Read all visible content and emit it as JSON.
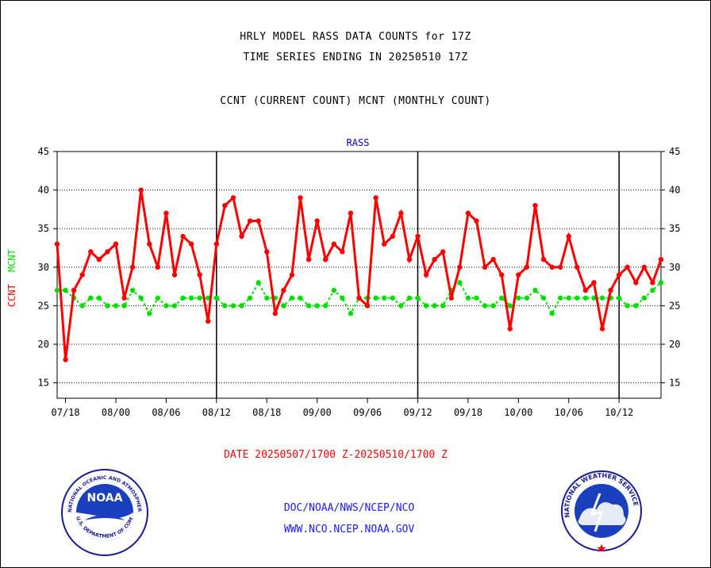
{
  "header": {
    "title_line1": "HRLY MODEL RASS DATA COUNTS for 17Z",
    "title_line2": "TIME SERIES ENDING IN 20250510 17Z",
    "subtitle": "CCNT (CURRENT COUNT) MCNT (MONTHLY COUNT)"
  },
  "footer": {
    "date_range": "DATE 20250507/1700 Z-20250510/1700 Z",
    "org": "DOC/NOAA/NWS/NCEP/NCO",
    "url": "WWW.NCO.NCEP.NOAA.GOV"
  },
  "logos": {
    "noaa_text": "NOAA",
    "noaa_ring": "NATIONAL OCEANIC AND ATMOSPHERIC ADMINISTRATION",
    "noaa_ring_bottom": "U.S. DEPARTMENT OF COMMERCE",
    "nws_ring": "NATIONAL WEATHER SERVICE"
  },
  "chart_data": {
    "type": "line",
    "title": "RASS",
    "ylabel_ccnt": "CCNT",
    "ylabel_mcnt": "MCNT",
    "ylim": [
      13,
      45
    ],
    "yticks": [
      15,
      20,
      25,
      30,
      35,
      40,
      45
    ],
    "xticks": [
      "07/18",
      "08/00",
      "08/06",
      "08/12",
      "08/18",
      "09/00",
      "09/06",
      "09/12",
      "09/18",
      "10/00",
      "10/06",
      "10/12"
    ],
    "day_separators": [
      "08/12",
      "09/12",
      "10/12"
    ],
    "grid": true,
    "colors": {
      "ccnt": "#ff0000",
      "mcnt": "#00e000",
      "title": "#0000cc"
    },
    "series": [
      {
        "name": "CCNT",
        "values": [
          33,
          18,
          27,
          29,
          32,
          31,
          32,
          33,
          26,
          30,
          40,
          33,
          30,
          37,
          29,
          34,
          33,
          29,
          23,
          33,
          38,
          39,
          34,
          36,
          36,
          32,
          24,
          27,
          29,
          39,
          31,
          36,
          31,
          33,
          32,
          37,
          26,
          25,
          39,
          33,
          34,
          37,
          31,
          34,
          29,
          31,
          32,
          26,
          30,
          37,
          36,
          30,
          31,
          29,
          22,
          29,
          30,
          38,
          31,
          30,
          30,
          34,
          30,
          27,
          28,
          22,
          27,
          29,
          30,
          28,
          30,
          28,
          31
        ]
      },
      {
        "name": "MCNT",
        "values": [
          27,
          27,
          26,
          25,
          26,
          26,
          25,
          25,
          25,
          27,
          26,
          24,
          26,
          25,
          25,
          26,
          26,
          26,
          26,
          26,
          25,
          25,
          25,
          26,
          28,
          26,
          26,
          25,
          26,
          26,
          25,
          25,
          25,
          27,
          26,
          24,
          26,
          26,
          26,
          26,
          26,
          25,
          26,
          26,
          25,
          25,
          25,
          27,
          28,
          26,
          26,
          25,
          25,
          26,
          25,
          26,
          26,
          27,
          26,
          24,
          26,
          26,
          26,
          26,
          26,
          26,
          26,
          26,
          25,
          25,
          26,
          27,
          28
        ]
      }
    ]
  }
}
